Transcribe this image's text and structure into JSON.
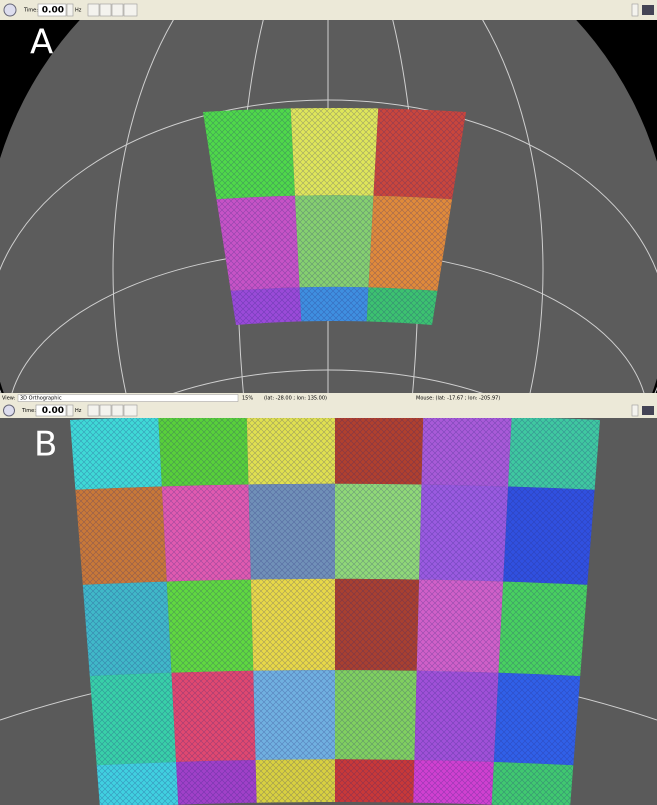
{
  "toolbar_top": {
    "time_label": "Time:",
    "time_value": "0.00",
    "unit": "Hz"
  },
  "panels": [
    {
      "label": "A"
    },
    {
      "label": "B"
    }
  ],
  "status_bar": {
    "view_label": "View:",
    "view_mode": "3D Orthographic",
    "zoom": "15%",
    "center": "(lat: -28.00 ; lon: 135.00)",
    "mouse": "Mouse: (lat: -17.67 ; lon: -205.97)"
  },
  "toolbar_bottom": {
    "time_label": "Time:",
    "time_value": "0.00",
    "unit": "Hz"
  }
}
